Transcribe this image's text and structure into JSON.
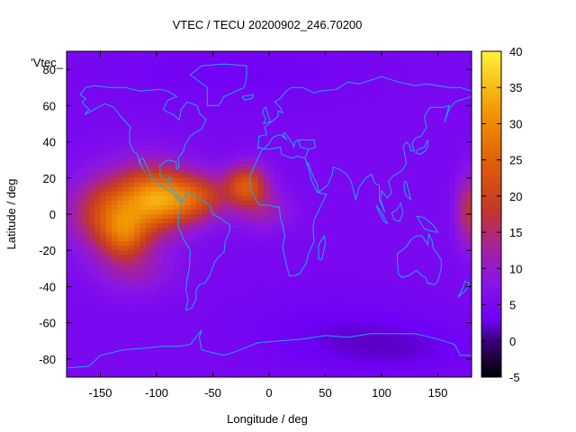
{
  "chart_data": {
    "type": "heatmap",
    "title": "VTEC / TECU 20200902_246.70200",
    "legend_key": "'Vtec_",
    "xlabel": "Longitude / deg",
    "ylabel": "Latitude / deg",
    "xlim": [
      -180,
      180
    ],
    "ylim": [
      -90,
      90
    ],
    "x_ticks": [
      -150,
      -100,
      -50,
      0,
      50,
      100,
      150
    ],
    "y_ticks": [
      -80,
      -60,
      -40,
      -20,
      0,
      20,
      40,
      60,
      80
    ],
    "colorbar": {
      "range": [
        -5,
        40
      ],
      "ticks": [
        -5,
        0,
        5,
        10,
        15,
        20,
        25,
        30,
        35,
        40
      ],
      "palette": [
        "#000000",
        "#3a0078",
        "#6f00f6",
        "#8a15e6",
        "#a6229b",
        "#c3372a",
        "#dd5a0a",
        "#f39a04",
        "#fff23a"
      ]
    },
    "colormap_values": [
      -5,
      0,
      3,
      8,
      13,
      18,
      24,
      32,
      40
    ],
    "background_level": 5,
    "enhancements": [
      {
        "lon": -140,
        "lat": 0,
        "sigma_lon": 25,
        "sigma_lat": 14,
        "amp": 16
      },
      {
        "lon": -128,
        "lat": -13,
        "sigma_lon": 14,
        "sigma_lat": 9,
        "amp": 10
      },
      {
        "lon": -102,
        "lat": 10,
        "sigma_lon": 20,
        "sigma_lat": 12,
        "amp": 14
      },
      {
        "lon": -112,
        "lat": 6,
        "sigma_lon": 30,
        "sigma_lat": 18,
        "amp": 5
      },
      {
        "lon": -80,
        "lat": 8,
        "sigma_lon": 20,
        "sigma_lat": 10,
        "amp": 11
      },
      {
        "lon": -58,
        "lat": 10,
        "sigma_lon": 17,
        "sigma_lat": 9,
        "amp": 9
      },
      {
        "lon": -20,
        "lat": 16,
        "sigma_lon": 13,
        "sigma_lat": 8,
        "amp": 18
      },
      {
        "lon": -5,
        "lat": 2,
        "sigma_lon": 18,
        "sigma_lat": 8,
        "amp": 6
      },
      {
        "lon": -120,
        "lat": -32,
        "sigma_lon": 25,
        "sigma_lat": 9,
        "amp": 5
      },
      {
        "lon": 178,
        "lat": 2,
        "sigma_lon": 8,
        "sigma_lat": 14,
        "amp": 12
      },
      {
        "lon": 60,
        "lat": -65,
        "sigma_lon": 60,
        "sigma_lat": 15,
        "amp": -2
      },
      {
        "lon": -30,
        "lat": 78,
        "sigma_lon": 80,
        "sigma_lat": 12,
        "amp": -1.5
      },
      {
        "lon": 120,
        "lat": -75,
        "sigma_lon": 50,
        "sigma_lat": 10,
        "amp": -2
      }
    ],
    "coastlines": [
      [
        [
          -168,
          66
        ],
        [
          -163,
          70
        ],
        [
          -156,
          71
        ],
        [
          -141,
          70
        ],
        [
          -128,
          70
        ],
        [
          -115,
          68
        ],
        [
          -97,
          69
        ],
        [
          -90,
          68
        ],
        [
          -82,
          65
        ],
        [
          -90,
          63
        ],
        [
          -94,
          58
        ],
        [
          -92,
          57
        ],
        [
          -85,
          55
        ],
        [
          -80,
          52
        ],
        [
          -78,
          58
        ],
        [
          -73,
          62
        ],
        [
          -64,
          60
        ],
        [
          -62,
          56
        ],
        [
          -56,
          52
        ],
        [
          -60,
          47
        ],
        [
          -66,
          45
        ],
        [
          -70,
          43
        ],
        [
          -75,
          38
        ],
        [
          -76,
          35
        ],
        [
          -81,
          31
        ],
        [
          -80,
          26
        ],
        [
          -82,
          25
        ],
        [
          -83,
          29
        ],
        [
          -90,
          30
        ],
        [
          -97,
          27
        ],
        [
          -97,
          22
        ],
        [
          -92,
          18
        ],
        [
          -88,
          21
        ],
        [
          -88,
          16
        ],
        [
          -83,
          12
        ],
        [
          -80,
          9
        ],
        [
          -77,
          8
        ],
        [
          -80,
          7
        ],
        [
          -86,
          12
        ],
        [
          -92,
          14
        ],
        [
          -96,
          16
        ],
        [
          -105,
          20
        ],
        [
          -106,
          23
        ],
        [
          -110,
          28
        ],
        [
          -112,
          31
        ],
        [
          -115,
          30
        ],
        [
          -114,
          27
        ],
        [
          -110,
          23
        ],
        [
          -115,
          28
        ],
        [
          -117,
          33
        ],
        [
          -121,
          35
        ],
        [
          -124,
          40
        ],
        [
          -124,
          46
        ],
        [
          -123,
          48
        ],
        [
          -126,
          50
        ],
        [
          -132,
          54
        ],
        [
          -138,
          59
        ],
        [
          -146,
          61
        ],
        [
          -152,
          59
        ],
        [
          -158,
          57
        ],
        [
          -164,
          55
        ],
        [
          -160,
          58
        ],
        [
          -164,
          60
        ],
        [
          -166,
          62
        ],
        [
          -163,
          64
        ],
        [
          -168,
          66
        ]
      ],
      [
        [
          -77,
          8
        ],
        [
          -72,
          12
        ],
        [
          -64,
          10
        ],
        [
          -60,
          8
        ],
        [
          -53,
          5
        ],
        [
          -50,
          0
        ],
        [
          -44,
          -2
        ],
        [
          -35,
          -6
        ],
        [
          -35,
          -9
        ],
        [
          -39,
          -15
        ],
        [
          -40,
          -21
        ],
        [
          -44,
          -23
        ],
        [
          -48,
          -26
        ],
        [
          -53,
          -34
        ],
        [
          -57,
          -38
        ],
        [
          -62,
          -39
        ],
        [
          -65,
          -42
        ],
        [
          -65,
          -47
        ],
        [
          -69,
          -52
        ],
        [
          -74,
          -53
        ],
        [
          -72,
          -47
        ],
        [
          -74,
          -42
        ],
        [
          -73,
          -36
        ],
        [
          -71,
          -30
        ],
        [
          -70,
          -20
        ],
        [
          -76,
          -14
        ],
        [
          -81,
          -6
        ],
        [
          -80,
          0
        ],
        [
          -78,
          3
        ],
        [
          -77,
          8
        ]
      ],
      [
        [
          -17,
          21
        ],
        [
          -17,
          15
        ],
        [
          -12,
          8
        ],
        [
          -8,
          5
        ],
        [
          0,
          5
        ],
        [
          6,
          4
        ],
        [
          9,
          4
        ],
        [
          10,
          -2
        ],
        [
          12,
          -6
        ],
        [
          14,
          -12
        ],
        [
          12,
          -18
        ],
        [
          15,
          -27
        ],
        [
          18,
          -34
        ],
        [
          22,
          -34
        ],
        [
          27,
          -33
        ],
        [
          33,
          -27
        ],
        [
          35,
          -22
        ],
        [
          40,
          -15
        ],
        [
          39,
          -8
        ],
        [
          40,
          -3
        ],
        [
          44,
          2
        ],
        [
          51,
          11
        ],
        [
          43,
          12
        ],
        [
          38,
          18
        ],
        [
          34,
          28
        ],
        [
          32,
          31
        ],
        [
          25,
          32
        ],
        [
          20,
          31
        ],
        [
          11,
          33
        ],
        [
          10,
          37
        ],
        [
          0,
          36
        ],
        [
          -6,
          36
        ],
        [
          -10,
          31
        ],
        [
          -13,
          27
        ],
        [
          -17,
          21
        ]
      ],
      [
        [
          -10,
          36
        ],
        [
          -9,
          43
        ],
        [
          -2,
          44
        ],
        [
          -4,
          48
        ],
        [
          2,
          51
        ],
        [
          8,
          54
        ],
        [
          8,
          57
        ],
        [
          12,
          56
        ],
        [
          10,
          59
        ],
        [
          5,
          62
        ],
        [
          10,
          64
        ],
        [
          15,
          68
        ],
        [
          20,
          70
        ],
        [
          30,
          70
        ],
        [
          40,
          67
        ],
        [
          45,
          68
        ],
        [
          60,
          69
        ],
        [
          70,
          73
        ],
        [
          80,
          72
        ],
        [
          100,
          76
        ],
        [
          115,
          73
        ],
        [
          130,
          71
        ],
        [
          140,
          72
        ],
        [
          160,
          70
        ],
        [
          170,
          70
        ],
        [
          180,
          68
        ]
      ],
      [
        [
          180,
          65
        ],
        [
          175,
          64
        ],
        [
          165,
          62
        ],
        [
          160,
          58
        ],
        [
          156,
          51
        ],
        [
          160,
          60
        ],
        [
          155,
          59
        ],
        [
          143,
          59
        ],
        [
          138,
          54
        ],
        [
          140,
          48
        ],
        [
          135,
          43
        ],
        [
          130,
          42
        ],
        [
          127,
          39
        ],
        [
          129,
          35
        ],
        [
          126,
          35
        ],
        [
          125,
          38
        ],
        [
          122,
          40
        ],
        [
          119,
          37
        ],
        [
          121,
          32
        ],
        [
          122,
          28
        ],
        [
          118,
          24
        ],
        [
          110,
          21
        ],
        [
          106,
          18
        ],
        [
          109,
          12
        ],
        [
          105,
          9
        ],
        [
          100,
          13
        ],
        [
          99,
          8
        ],
        [
          103,
          1
        ],
        [
          98,
          8
        ],
        [
          98,
          16
        ],
        [
          94,
          17
        ],
        [
          91,
          22
        ],
        [
          86,
          20
        ],
        [
          80,
          15
        ],
        [
          77,
          8
        ],
        [
          73,
          18
        ],
        [
          69,
          22
        ],
        [
          62,
          25
        ],
        [
          57,
          26
        ],
        [
          56,
          22
        ],
        [
          52,
          16
        ],
        [
          44,
          12
        ],
        [
          43,
          16
        ],
        [
          39,
          21
        ],
        [
          35,
          28
        ],
        [
          34,
          27
        ],
        [
          32,
          31
        ],
        [
          35,
          36
        ],
        [
          28,
          37
        ],
        [
          26,
          41
        ],
        [
          29,
          41
        ],
        [
          40,
          41
        ],
        [
          41,
          37
        ],
        [
          36,
          36
        ]
      ],
      [
        [
          26,
          41
        ],
        [
          23,
          40
        ],
        [
          22,
          37
        ],
        [
          20,
          40
        ],
        [
          14,
          45
        ],
        [
          12,
          44
        ],
        [
          16,
          41
        ],
        [
          14,
          42
        ],
        [
          10,
          44
        ],
        [
          5,
          43
        ],
        [
          3,
          42
        ],
        [
          0,
          39
        ],
        [
          -5,
          36
        ],
        [
          -9,
          37
        ],
        [
          -10,
          36
        ]
      ],
      [
        [
          114,
          -22
        ],
        [
          114,
          -26
        ],
        [
          115,
          -33
        ],
        [
          118,
          -35
        ],
        [
          124,
          -34
        ],
        [
          131,
          -31
        ],
        [
          136,
          -34
        ],
        [
          139,
          -35
        ],
        [
          141,
          -38
        ],
        [
          147,
          -39
        ],
        [
          150,
          -37
        ],
        [
          153,
          -30
        ],
        [
          153,
          -25
        ],
        [
          146,
          -19
        ],
        [
          145,
          -15
        ],
        [
          142,
          -11
        ],
        [
          141,
          -17
        ],
        [
          136,
          -12
        ],
        [
          131,
          -12
        ],
        [
          126,
          -14
        ],
        [
          122,
          -18
        ],
        [
          114,
          -22
        ]
      ],
      [
        [
          -6,
          56
        ],
        [
          -5,
          58
        ],
        [
          -3,
          59
        ],
        [
          -2,
          57
        ],
        [
          0,
          53
        ],
        [
          1,
          51
        ],
        [
          -5,
          50
        ],
        [
          -3,
          53
        ],
        [
          -5,
          55
        ],
        [
          -6,
          56
        ]
      ],
      [
        [
          -24,
          65
        ],
        [
          -14,
          66
        ],
        [
          -15,
          64
        ],
        [
          -22,
          63
        ],
        [
          -24,
          65
        ]
      ],
      [
        [
          -55,
          60
        ],
        [
          -45,
          60
        ],
        [
          -40,
          65
        ],
        [
          -22,
          70
        ],
        [
          -20,
          76
        ],
        [
          -20,
          82
        ],
        [
          -40,
          83
        ],
        [
          -60,
          82
        ],
        [
          -70,
          77
        ],
        [
          -55,
          70
        ],
        [
          -55,
          60
        ]
      ],
      [
        [
          -180,
          -85
        ],
        [
          -160,
          -84
        ],
        [
          -150,
          -78
        ],
        [
          -130,
          -75
        ],
        [
          -110,
          -74
        ],
        [
          -95,
          -73
        ],
        [
          -80,
          -73
        ],
        [
          -70,
          -72
        ],
        [
          -60,
          -64
        ],
        [
          -62,
          -68
        ],
        [
          -60,
          -75
        ],
        [
          -40,
          -78
        ],
        [
          -30,
          -76
        ],
        [
          -10,
          -71
        ],
        [
          10,
          -70
        ],
        [
          30,
          -69
        ],
        [
          50,
          -67
        ],
        [
          70,
          -68
        ],
        [
          90,
          -66
        ],
        [
          110,
          -66
        ],
        [
          130,
          -66
        ],
        [
          150,
          -69
        ],
        [
          165,
          -72
        ],
        [
          170,
          -78
        ],
        [
          180,
          -78
        ]
      ],
      [
        [
          130,
          34
        ],
        [
          133,
          36
        ],
        [
          138,
          37
        ],
        [
          141,
          41
        ],
        [
          141,
          38
        ],
        [
          139,
          35
        ],
        [
          134,
          33
        ],
        [
          130,
          34
        ]
      ],
      [
        [
          172,
          -41
        ],
        [
          174,
          -37
        ],
        [
          178,
          -38
        ],
        [
          175,
          -42
        ],
        [
          171,
          -44
        ],
        [
          168,
          -46
        ],
        [
          172,
          -41
        ]
      ],
      [
        [
          95,
          5
        ],
        [
          100,
          1
        ],
        [
          105,
          -5
        ],
        [
          102,
          -4
        ],
        [
          97,
          2
        ],
        [
          95,
          5
        ]
      ],
      [
        [
          109,
          1
        ],
        [
          111,
          -3
        ],
        [
          116,
          -4
        ],
        [
          119,
          1
        ],
        [
          117,
          6
        ],
        [
          113,
          2
        ],
        [
          109,
          1
        ]
      ],
      [
        [
          131,
          -1
        ],
        [
          138,
          -2
        ],
        [
          146,
          -6
        ],
        [
          150,
          -10
        ],
        [
          142,
          -9
        ],
        [
          138,
          -8
        ],
        [
          131,
          -1
        ]
      ],
      [
        [
          44,
          -25
        ],
        [
          47,
          -25
        ],
        [
          50,
          -16
        ],
        [
          49,
          -12
        ],
        [
          44,
          -17
        ],
        [
          44,
          -25
        ]
      ],
      [
        [
          120,
          18
        ],
        [
          122,
          18
        ],
        [
          124,
          13
        ],
        [
          126,
          8
        ],
        [
          122,
          10
        ],
        [
          120,
          14
        ],
        [
          120,
          18
        ]
      ]
    ]
  }
}
